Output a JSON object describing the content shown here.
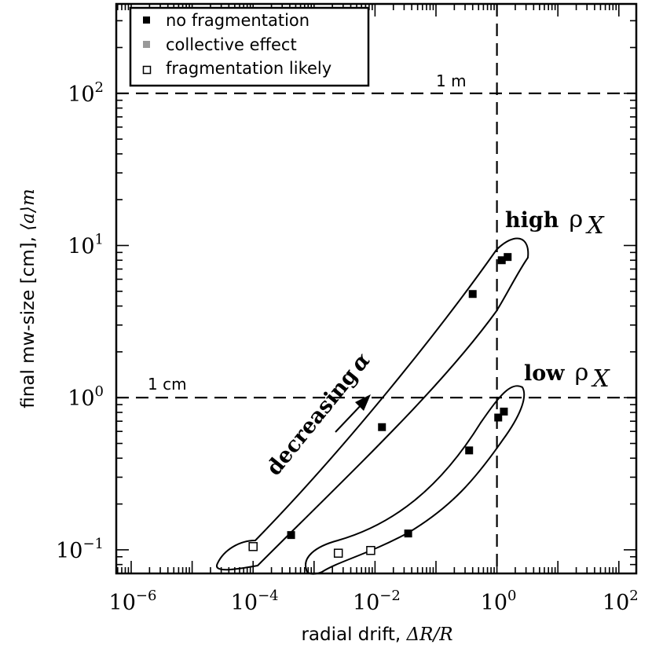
{
  "chart_data": {
    "type": "scatter",
    "xscale": "log",
    "yscale": "log",
    "xlim": [
      1e-07,
      100
    ],
    "ylim": [
      0.07,
      400
    ],
    "xlabel_text": "radial drift, ",
    "xlabel_math": "ΔR/R",
    "ylabel_text": "final mw-size [cm], ",
    "ylabel_math": "⟨a⟩m",
    "x_ticks": [
      {
        "value": 1e-06,
        "base": "10",
        "exp": "−6"
      },
      {
        "value": 0.0001,
        "base": "10",
        "exp": "−4"
      },
      {
        "value": 0.01,
        "base": "10",
        "exp": "−2"
      },
      {
        "value": 1,
        "base": "10",
        "exp": "0"
      },
      {
        "value": 100,
        "base": "10",
        "exp": "2"
      }
    ],
    "y_ticks": [
      {
        "value": 0.1,
        "base": "10",
        "exp": "−1"
      },
      {
        "value": 1,
        "base": "10",
        "exp": "0"
      },
      {
        "value": 10,
        "base": "10",
        "exp": "1"
      },
      {
        "value": 100,
        "base": "10",
        "exp": "2"
      }
    ],
    "legend": {
      "placement": "top-left",
      "entries": [
        {
          "label": "no fragmentation",
          "marker": "filled-square",
          "color": "#000000"
        },
        {
          "label": "collective effect",
          "marker": "filled-square",
          "color": "#999999"
        },
        {
          "label": "fragmentation likely",
          "marker": "open-square",
          "color": "#000000"
        }
      ]
    },
    "series": [
      {
        "name": "no fragmentation",
        "marker": "filled-square",
        "color": "#000000",
        "points": [
          {
            "x": 0.00042,
            "y": 0.125
          },
          {
            "x": 0.013,
            "y": 0.64
          },
          {
            "x": 0.035,
            "y": 0.128
          },
          {
            "x": 0.35,
            "y": 0.45
          },
          {
            "x": 0.4,
            "y": 4.8
          },
          {
            "x": 1.05,
            "y": 0.74
          },
          {
            "x": 1.2,
            "y": 8.0
          },
          {
            "x": 1.3,
            "y": 0.81
          },
          {
            "x": 1.5,
            "y": 8.4
          }
        ]
      },
      {
        "name": "collective effect",
        "marker": "filled-square",
        "color": "#999999",
        "points": []
      },
      {
        "name": "fragmentation likely",
        "marker": "open-square",
        "color": "#000000",
        "points": [
          {
            "x": 0.0001,
            "y": 0.105
          },
          {
            "x": 0.0025,
            "y": 0.095
          },
          {
            "x": 0.0085,
            "y": 0.099
          }
        ]
      }
    ],
    "reference_lines": [
      {
        "orientation": "horizontal",
        "value": 100,
        "label": "1 m"
      },
      {
        "orientation": "horizontal",
        "value": 1,
        "label": "1 cm"
      },
      {
        "orientation": "vertical",
        "value": 1,
        "label": ""
      }
    ],
    "annotations": {
      "high_label": "high",
      "low_label": "low",
      "rho_symbol": "ρ",
      "rho_subscript": "X",
      "arrow_label": "decreasing",
      "arrow_symbol": "α"
    }
  }
}
